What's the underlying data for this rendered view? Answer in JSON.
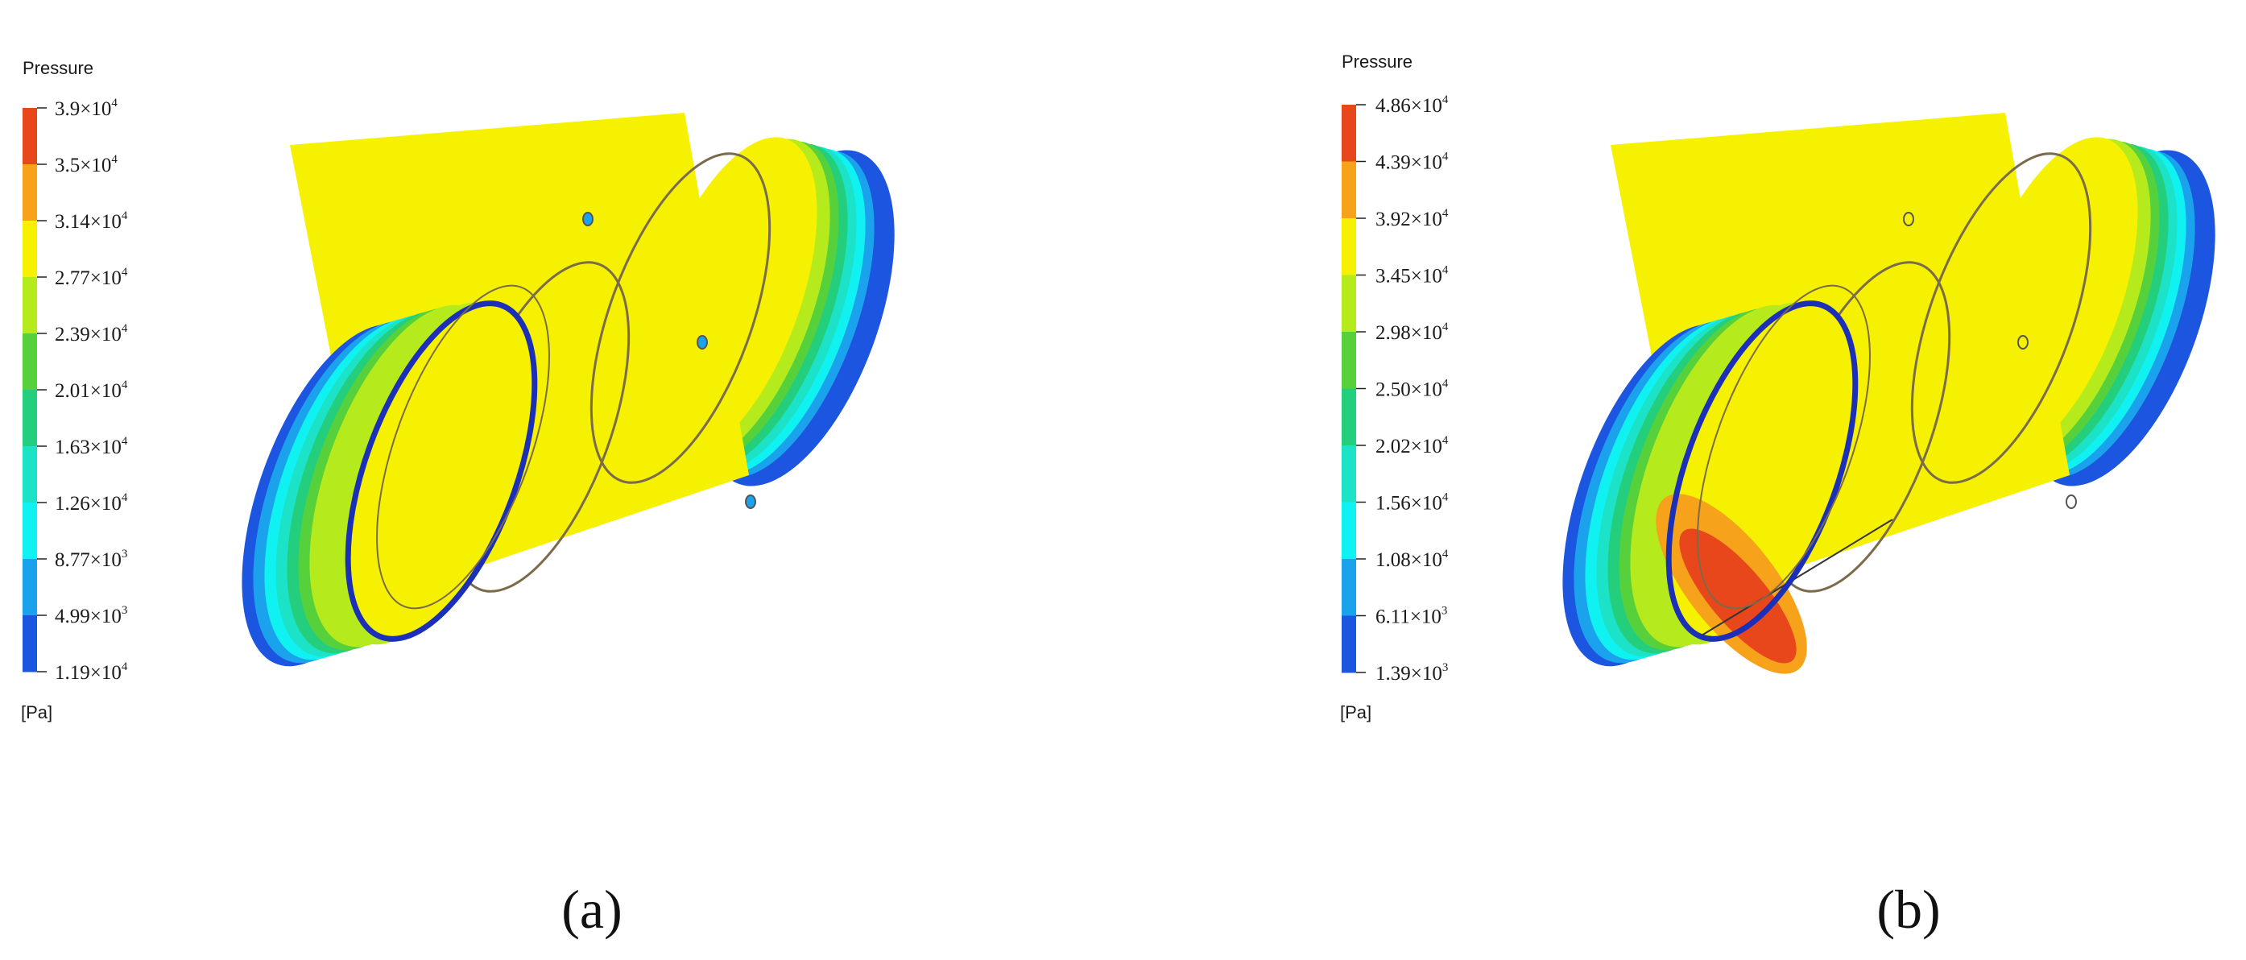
{
  "panels": [
    {
      "caption": "(a)",
      "legend": {
        "title": "Pressure",
        "unit": "[Pa]",
        "ticks": [
          {
            "base": "3.9×10",
            "exp": "4"
          },
          {
            "base": "3.5×10",
            "exp": "4"
          },
          {
            "base": "3.14×10",
            "exp": "4"
          },
          {
            "base": "2.77×10",
            "exp": "4"
          },
          {
            "base": "2.39×10",
            "exp": "4"
          },
          {
            "base": "2.01×10",
            "exp": "4"
          },
          {
            "base": "1.63×10",
            "exp": "4"
          },
          {
            "base": "1.26×10",
            "exp": "4"
          },
          {
            "base": "8.77×10",
            "exp": "3"
          },
          {
            "base": "4.99×10",
            "exp": "3"
          },
          {
            "base": "1.19×10",
            "exp": "4"
          }
        ]
      }
    },
    {
      "caption": "(b)",
      "legend": {
        "title": "Pressure",
        "unit": "[Pa]",
        "ticks": [
          {
            "base": "4.86×10",
            "exp": "4"
          },
          {
            "base": "4.39×10",
            "exp": "4"
          },
          {
            "base": "3.92×10",
            "exp": "4"
          },
          {
            "base": "3.45×10",
            "exp": "4"
          },
          {
            "base": "2.98×10",
            "exp": "4"
          },
          {
            "base": "2.50×10",
            "exp": "4"
          },
          {
            "base": "2.02×10",
            "exp": "4"
          },
          {
            "base": "1.56×10",
            "exp": "4"
          },
          {
            "base": "1.08×10",
            "exp": "4"
          },
          {
            "base": "6.11×10",
            "exp": "3"
          },
          {
            "base": "1.39×10",
            "exp": "3"
          }
        ]
      }
    }
  ],
  "colorbar": [
    "#e8471c",
    "#f6a21a",
    "#f6f100",
    "#b5ea1d",
    "#56d13c",
    "#23cf7c",
    "#1ce3c7",
    "#0ff2f1",
    "#1aa3ec",
    "#1c55e0"
  ]
}
